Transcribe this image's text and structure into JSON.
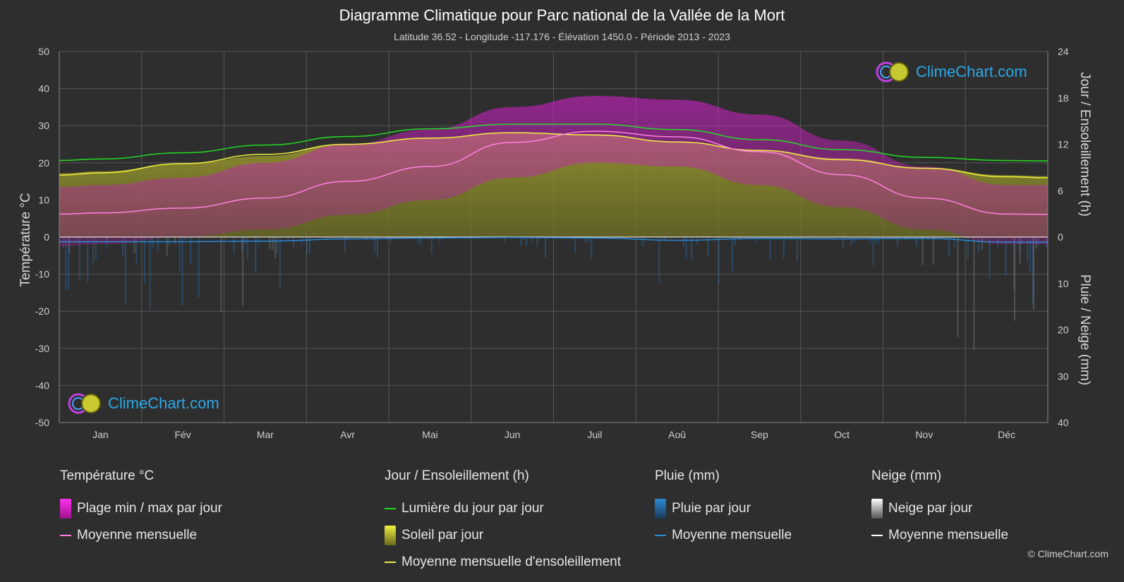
{
  "title": "Diagramme Climatique pour Parc national de la Vallée de la Mort",
  "subtitle": "Latitude 36.52 - Longitude -117.176 - Élévation 1450.0 - Période 2013 - 2023",
  "logo_text": "ClimeChart.com",
  "copyright": "© ClimeChart.com",
  "colors": {
    "background": "#2e2e2e",
    "temp_range": "#e020d8",
    "temp_mean": "#ff80e0",
    "daylight": "#22dd22",
    "sunshine_fill": "#9a9a2a",
    "sunshine_mean": "#f0f040",
    "rain": "#2a8ad8",
    "rain_mean": "#2a8ad8",
    "snow": "#bbbbbb",
    "snow_mean": "#ffffff",
    "logo_text": "#2aa8e8"
  },
  "legend": {
    "temperature": {
      "title": "Température °C",
      "items": [
        "Plage min / max par jour",
        "Moyenne mensuelle"
      ]
    },
    "sun": {
      "title": "Jour / Ensoleillement (h)",
      "items": [
        "Lumière du jour par jour",
        "Soleil par jour",
        "Moyenne mensuelle d'ensoleillement"
      ]
    },
    "rain": {
      "title": "Pluie (mm)",
      "items": [
        "Pluie par jour",
        "Moyenne mensuelle"
      ]
    },
    "snow": {
      "title": "Neige (mm)",
      "items": [
        "Neige par jour",
        "Moyenne mensuelle"
      ]
    }
  },
  "chart_data": {
    "type": "area",
    "categories": [
      "Jan",
      "Fév",
      "Mar",
      "Avr",
      "Mai",
      "Jun",
      "Juil",
      "Aoû",
      "Sep",
      "Oct",
      "Nov",
      "Déc"
    ],
    "y_left": {
      "label": "Température °C",
      "range": [
        -50,
        50
      ],
      "ticks": [
        50,
        40,
        30,
        20,
        10,
        0,
        -10,
        -20,
        -30,
        -40,
        -50
      ]
    },
    "y_right_top": {
      "label": "Jour / Ensoleillement (h)",
      "range": [
        0,
        24
      ],
      "ticks": [
        24,
        18,
        12,
        6,
        0
      ]
    },
    "y_right_bottom": {
      "label": "Pluie / Neige (mm)",
      "range": [
        0,
        40
      ],
      "ticks": [
        0,
        10,
        20,
        30,
        40
      ]
    },
    "grid": true,
    "series": [
      {
        "name": "Moyenne mensuelle",
        "group": "temperature",
        "values": [
          6.5,
          7.8,
          10.5,
          15.0,
          19.0,
          25.5,
          28.5,
          27.0,
          23.0,
          16.8,
          10.5,
          6.2
        ]
      },
      {
        "name": "Plage min / max par jour",
        "group": "temperature",
        "kind": "band",
        "min": [
          -2,
          0,
          2,
          6,
          10,
          16,
          20,
          19,
          14,
          8,
          2,
          -2
        ],
        "max": [
          14,
          16,
          20,
          25,
          29,
          35,
          38,
          37,
          33,
          26,
          19,
          14
        ]
      },
      {
        "name": "Lumière du jour par jour",
        "group": "sun",
        "values": [
          10.1,
          10.9,
          11.9,
          13.0,
          14.0,
          14.6,
          14.6,
          13.9,
          12.6,
          11.3,
          10.3,
          9.9
        ]
      },
      {
        "name": "Soleil par jour",
        "group": "sun",
        "kind": "area",
        "values": [
          8.5,
          9.5,
          10.5,
          12.0,
          12.8,
          13.5,
          13.3,
          12.3,
          11.2,
          10.2,
          9.0,
          8.0
        ]
      },
      {
        "name": "Moyenne mensuelle d'ensoleillement",
        "group": "sun",
        "values": [
          8.3,
          9.5,
          10.7,
          12.0,
          12.8,
          13.5,
          13.2,
          12.3,
          11.2,
          10.0,
          8.9,
          7.8
        ]
      },
      {
        "name": "Moyenne mensuelle",
        "group": "rain",
        "values": [
          1.0,
          1.0,
          0.9,
          0.4,
          0.2,
          0.1,
          0.2,
          0.7,
          0.3,
          0.4,
          0.3,
          1.1
        ]
      },
      {
        "name": "Moyenne mensuelle",
        "group": "snow",
        "values": [
          0.1,
          0.1,
          0.05,
          0,
          0,
          0,
          0,
          0,
          0,
          0,
          0.05,
          0.1
        ]
      }
    ]
  }
}
